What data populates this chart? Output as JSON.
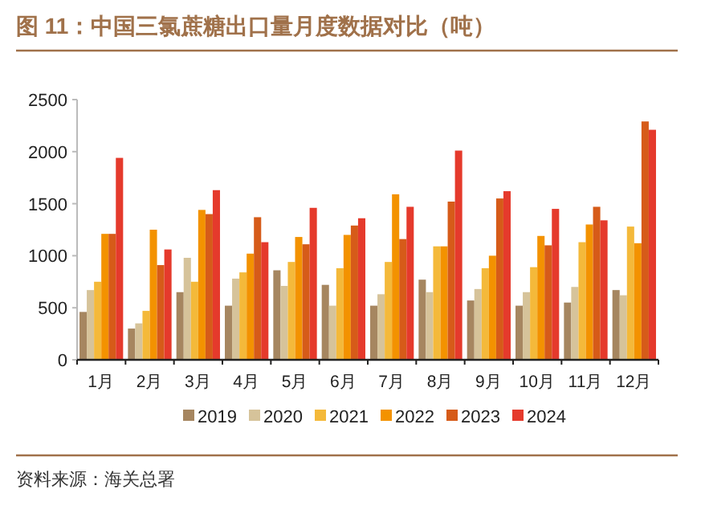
{
  "chart_data": {
    "type": "bar",
    "title": "图 11：中国三氯蔗糖出口量月度数据对比（吨）",
    "categories": [
      "1月",
      "2月",
      "3月",
      "4月",
      "5月",
      "6月",
      "7月",
      "8月",
      "9月",
      "10月",
      "11月",
      "12月"
    ],
    "series": [
      {
        "name": "2019",
        "color": "#a68660",
        "values": [
          460,
          300,
          650,
          520,
          860,
          720,
          520,
          770,
          570,
          520,
          550,
          670
        ]
      },
      {
        "name": "2020",
        "color": "#d6c39a",
        "values": [
          670,
          350,
          980,
          780,
          710,
          520,
          630,
          650,
          680,
          650,
          700,
          620
        ]
      },
      {
        "name": "2021",
        "color": "#f4b93a",
        "values": [
          750,
          470,
          750,
          840,
          940,
          880,
          940,
          1090,
          880,
          890,
          1130,
          1280
        ]
      },
      {
        "name": "2022",
        "color": "#f39200",
        "values": [
          1210,
          1250,
          1440,
          1020,
          1180,
          1200,
          1590,
          1090,
          1000,
          1190,
          1300,
          1120
        ]
      },
      {
        "name": "2023",
        "color": "#d65b19",
        "values": [
          1210,
          910,
          1400,
          1370,
          1110,
          1290,
          1160,
          1520,
          1550,
          1100,
          1470,
          2290
        ]
      },
      {
        "name": "2024",
        "color": "#e53a2c",
        "values": [
          1940,
          1060,
          1630,
          1130,
          1460,
          1360,
          1470,
          2010,
          1620,
          1450,
          1340,
          2210
        ]
      }
    ],
    "ylim": [
      0,
      2500
    ],
    "yticks": [
      0,
      500,
      1000,
      1500,
      2000,
      2500
    ],
    "legend": "bottom",
    "annotations": [
      "资料来源：海关总署"
    ]
  }
}
